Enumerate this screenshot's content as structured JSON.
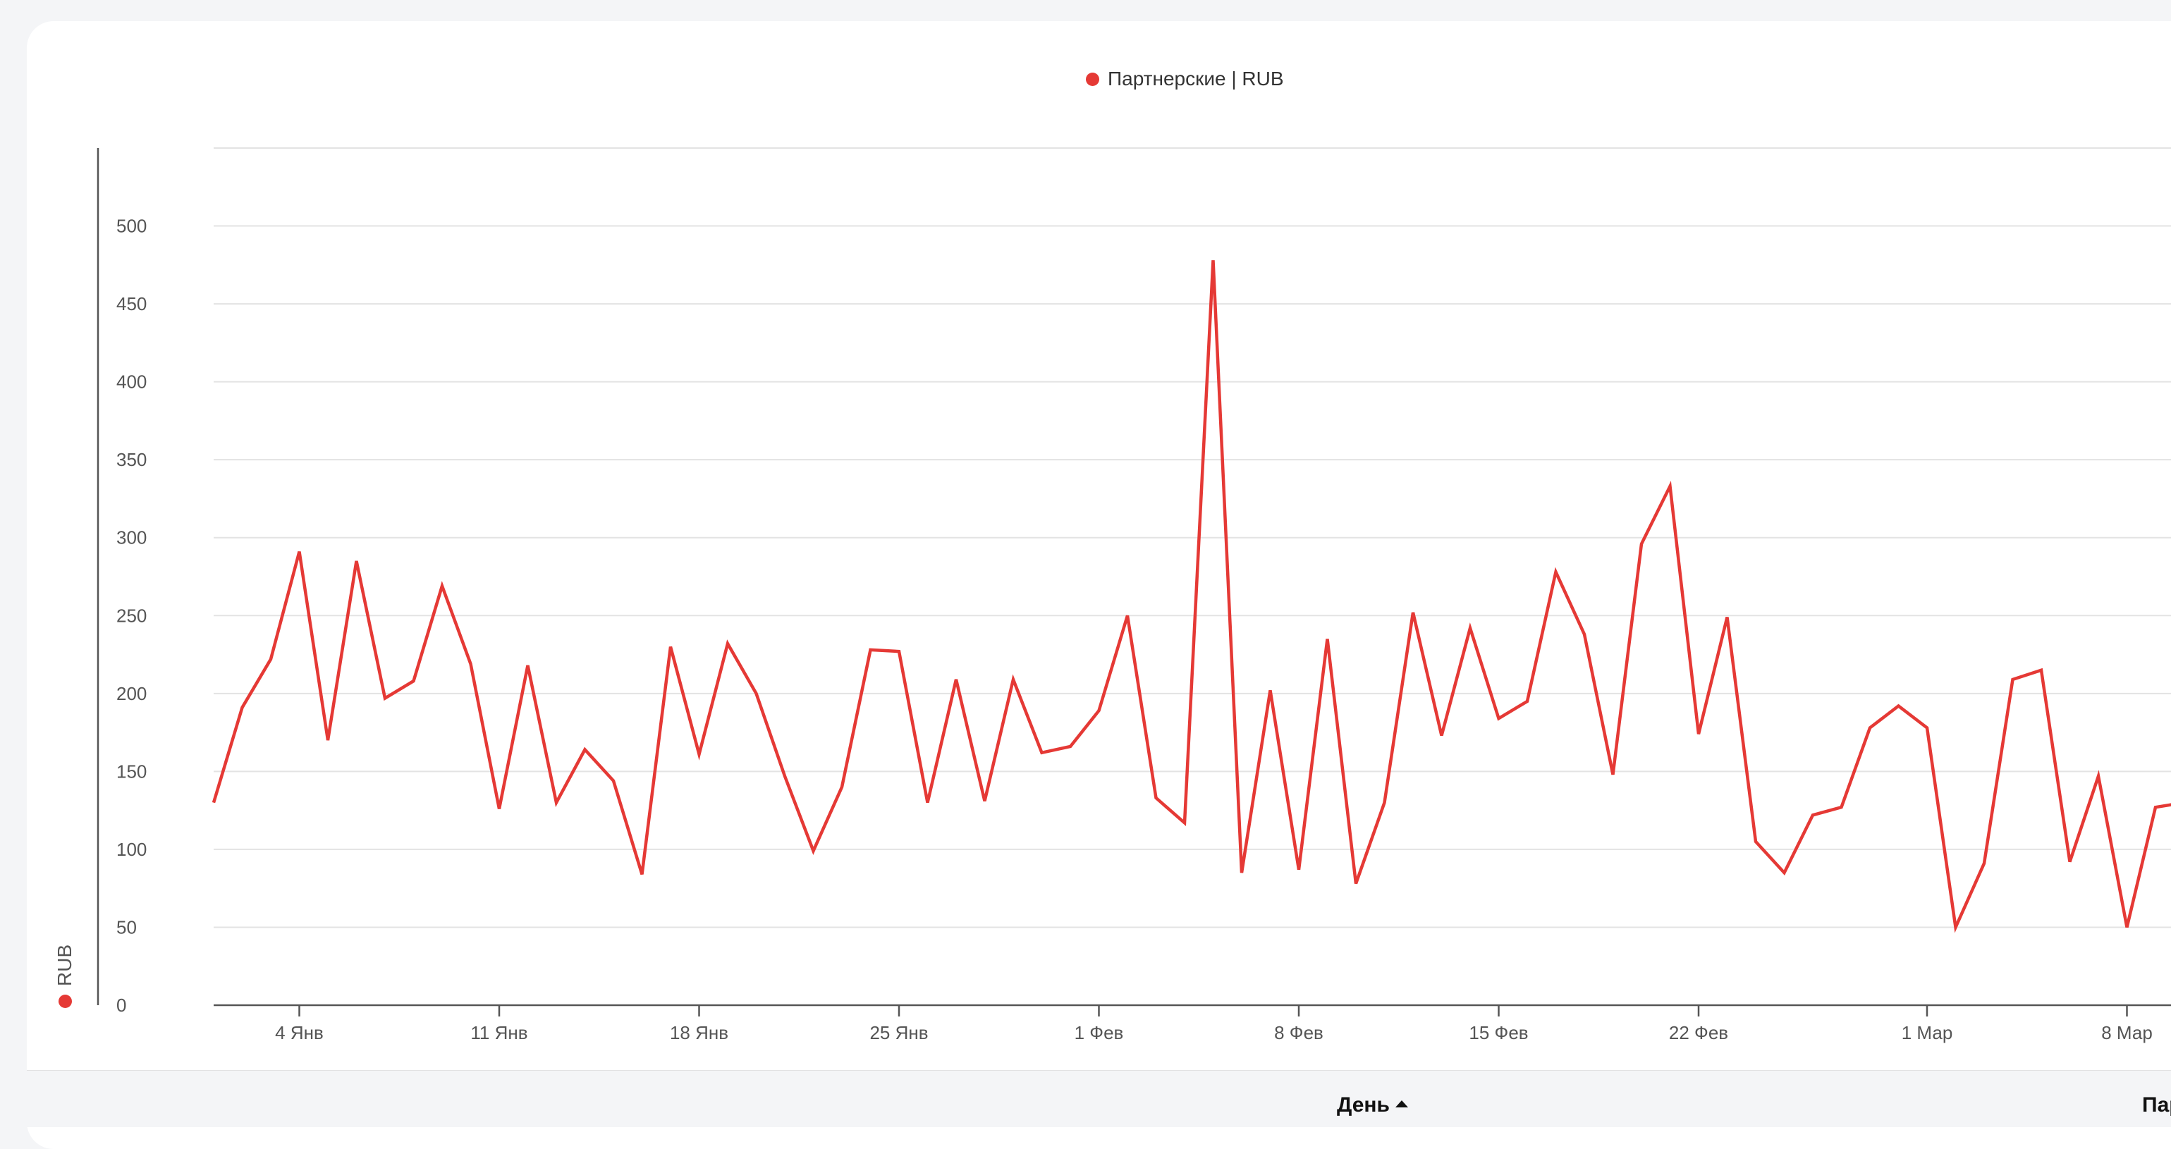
{
  "legend": {
    "label": "Партнерские | RUB",
    "color": "#e53935"
  },
  "y_axis_title": "RUB",
  "table": {
    "columns": [
      {
        "label": "День",
        "sorted": "asc"
      },
      {
        "label": "Пар"
      }
    ]
  },
  "chart_data": {
    "type": "line",
    "title": "",
    "xlabel": "",
    "ylabel": "RUB",
    "ylim": [
      0,
      550
    ],
    "y_ticks": [
      0,
      50,
      100,
      150,
      200,
      250,
      300,
      350,
      400,
      450,
      500
    ],
    "x_start_date": "2024-01-01",
    "x_tick_labels": [
      {
        "date": "2024-01-04",
        "label": "4 Янв"
      },
      {
        "date": "2024-01-11",
        "label": "11 Янв"
      },
      {
        "date": "2024-01-18",
        "label": "18 Янв"
      },
      {
        "date": "2024-01-25",
        "label": "25 Янв"
      },
      {
        "date": "2024-02-01",
        "label": "1 Фев"
      },
      {
        "date": "2024-02-08",
        "label": "8 Фев"
      },
      {
        "date": "2024-02-15",
        "label": "15 Фев"
      },
      {
        "date": "2024-02-22",
        "label": "22 Фев"
      },
      {
        "date": "2024-03-01",
        "label": "1 Мар"
      },
      {
        "date": "2024-03-08",
        "label": "8 Мар"
      }
    ],
    "series": [
      {
        "name": "Партнерские | RUB",
        "color": "#e53935",
        "values": [
          130,
          191,
          222,
          291,
          170,
          285,
          197,
          208,
          269,
          219,
          126,
          218,
          130,
          164,
          144,
          84,
          230,
          161,
          232,
          200,
          147,
          99,
          140,
          228,
          227,
          130,
          209,
          131,
          209,
          162,
          166,
          189,
          250,
          133,
          117,
          478,
          85,
          202,
          87,
          235,
          78,
          130,
          252,
          173,
          242,
          184,
          195,
          278,
          238,
          148,
          296,
          333,
          174,
          249,
          105,
          85,
          122,
          127,
          178,
          192,
          178,
          50,
          91,
          209,
          215,
          92,
          147,
          50,
          127,
          130
        ]
      }
    ]
  }
}
